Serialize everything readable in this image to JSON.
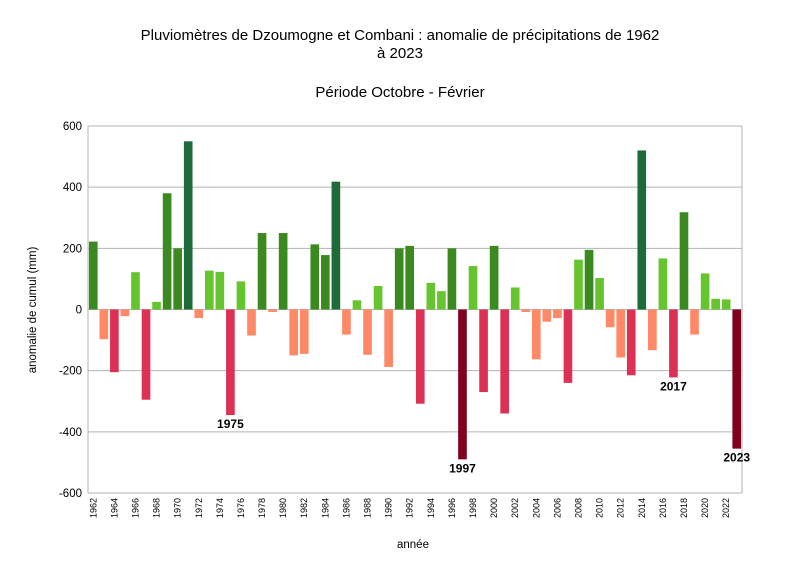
{
  "chart_data": {
    "type": "bar",
    "title_line1": "Pluviomètres de Dzoumogne et Combani : anomalie de précipitations de 1962",
    "title_line2": "à 2023",
    "subtitle": "Période Octobre - Février",
    "xlabel": "année",
    "ylabel": "anomalie de cumul (mm)",
    "ylim": [
      -600,
      600
    ],
    "yticks": [
      "600",
      "400",
      "200",
      "0",
      "-200",
      "-400",
      "-600"
    ],
    "ytick_values": [
      600,
      400,
      200,
      0,
      -200,
      -400,
      -600
    ],
    "grid": true,
    "legend": "none",
    "categories": [
      "1962",
      "1963",
      "1964",
      "1965",
      "1966",
      "1967",
      "1968",
      "1969",
      "1970",
      "1971",
      "1972",
      "1973",
      "1974",
      "1975",
      "1976",
      "1977",
      "1978",
      "1979",
      "1980",
      "1981",
      "1982",
      "1983",
      "1984",
      "1985",
      "1986",
      "1987",
      "1988",
      "1989",
      "1990",
      "1991",
      "1992",
      "1993",
      "1994",
      "1995",
      "1996",
      "1997",
      "1998",
      "1999",
      "2000",
      "2001",
      "2002",
      "2003",
      "2004",
      "2005",
      "2006",
      "2007",
      "2008",
      "2009",
      "2010",
      "2011",
      "2012",
      "2013",
      "2014",
      "2015",
      "2016",
      "2017",
      "2018",
      "2019",
      "2020",
      "2021",
      "2022",
      "2023"
    ],
    "tick_labels": [
      "1962",
      "1964",
      "1966",
      "1968",
      "1970",
      "1972",
      "1974",
      "1976",
      "1978",
      "1980",
      "1982",
      "1984",
      "1986",
      "1988",
      "1990",
      "1992",
      "1994",
      "1996",
      "1998",
      "2000",
      "2002",
      "2004",
      "2006",
      "2008",
      "2010",
      "2012",
      "2014",
      "2016",
      "2018",
      "2020",
      "2022"
    ],
    "values": [
      222,
      -97,
      -205,
      -22,
      122,
      -295,
      25,
      380,
      200,
      550,
      -28,
      127,
      123,
      -345,
      92,
      -85,
      250,
      -8,
      250,
      -150,
      -145,
      213,
      178,
      418,
      -82,
      30,
      -148,
      77,
      -188,
      200,
      208,
      -308,
      87,
      60,
      200,
      -490,
      142,
      -270,
      208,
      -340,
      72,
      -8,
      -163,
      -40,
      -28,
      -240,
      163,
      195,
      103,
      -58,
      -157,
      -215,
      520,
      -133,
      167,
      -222,
      318,
      -82,
      118,
      35,
      33,
      -455
    ],
    "colors": {
      "dark_green": "#1e6b3a",
      "mid_green": "#3a8a1f",
      "light_green": "#66c42e",
      "light_red": "#ff8866",
      "mid_red": "#dc3155",
      "dark_red": "#800020",
      "grid": "#b3b3b3"
    },
    "annotations": [
      {
        "year": "1975",
        "label": "1975"
      },
      {
        "year": "1997",
        "label": "1997"
      },
      {
        "year": "2017",
        "label": "2017"
      },
      {
        "year": "2023",
        "label": "2023"
      }
    ]
  }
}
